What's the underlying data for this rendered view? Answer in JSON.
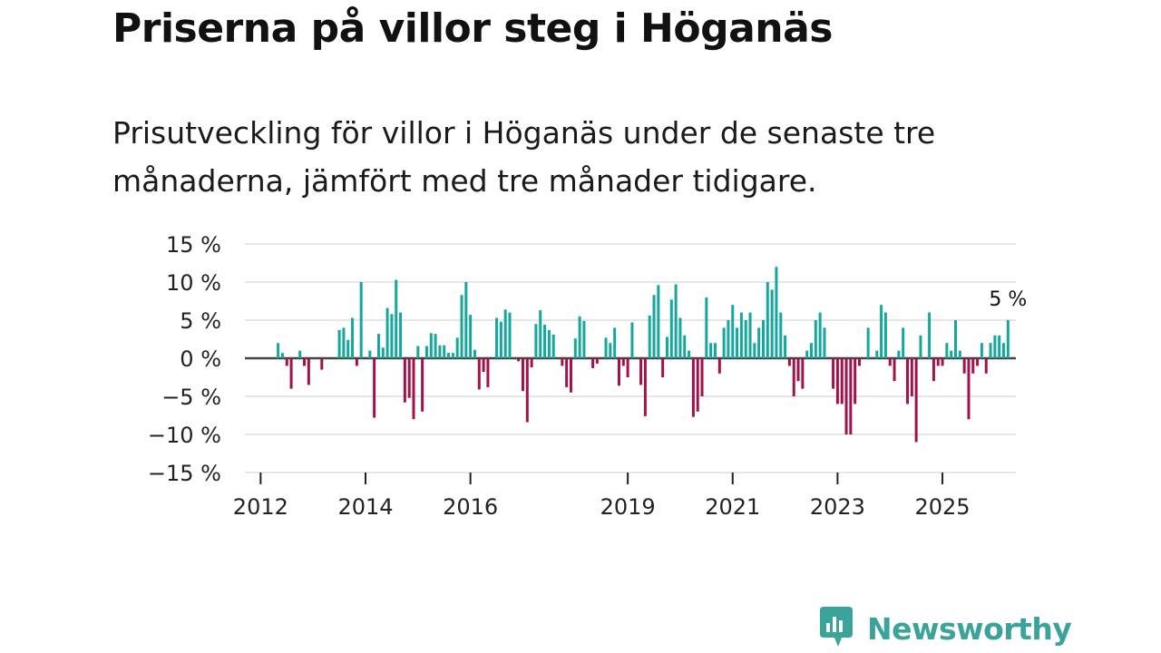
{
  "brand": {
    "name": "Newsworthy",
    "color": "#3aa39a"
  },
  "chart_data": {
    "type": "bar",
    "title": "Priserna på villor steg i Höganäs",
    "subtitle": "Prisutveckling för villor i Höganäs under de senaste tre månaderna, jämfört med tre månader tidigare.",
    "xlabel": "",
    "ylabel": "",
    "unit": "%",
    "ylim": [
      -15,
      15
    ],
    "y_ticks": [
      {
        "value": 15,
        "label": "15 %"
      },
      {
        "value": 10,
        "label": "10 %"
      },
      {
        "value": 5,
        "label": "5 %"
      },
      {
        "value": 0,
        "label": "0 %"
      },
      {
        "value": -5,
        "label": "−5 %"
      },
      {
        "value": -10,
        "label": "−10 %"
      },
      {
        "value": -15,
        "label": "−15 %"
      }
    ],
    "x_ticks": [
      {
        "label": "2012",
        "year": 2012
      },
      {
        "label": "2014",
        "year": 2014
      },
      {
        "label": "2016",
        "year": 2016
      },
      {
        "label": "2019",
        "year": 2019
      },
      {
        "label": "2021",
        "year": 2021
      },
      {
        "label": "2023",
        "year": 2023
      },
      {
        "label": "2025",
        "year": 2025
      }
    ],
    "x_range_years": [
      2011.7,
      2026.4
    ],
    "start": {
      "year": 2012,
      "month": 5
    },
    "positive_color": "#13a89e",
    "negative_color": "#a3114a",
    "last_value_label": "5 %",
    "series": [
      {
        "name": "Prisutveckling",
        "values": [
          2,
          0.7,
          -1,
          -4,
          0,
          1,
          -1,
          -3.5,
          0,
          0,
          -1.5,
          0,
          0,
          0,
          3.7,
          4,
          2.4,
          5.3,
          -1,
          10,
          0,
          1,
          -7.8,
          3.2,
          1.4,
          6.6,
          5.8,
          10.3,
          6,
          -5.8,
          -5.2,
          -8,
          1.6,
          -7,
          1.6,
          3.3,
          3.2,
          1.7,
          1.7,
          0.7,
          0.7,
          2.7,
          8.3,
          10,
          5.7,
          1.1,
          -4.1,
          -1.8,
          -3.8,
          0,
          5.3,
          4.8,
          6.4,
          6,
          0,
          -0.4,
          -4.3,
          -8.4,
          -1.2,
          4.5,
          6.3,
          4.4,
          3.7,
          3.1,
          0,
          -1,
          -3.8,
          -4.5,
          2.6,
          5.5,
          4.9,
          0,
          -1.3,
          -0.7,
          0,
          2.7,
          2,
          4,
          -3.6,
          -1,
          -2.5,
          4.7,
          0,
          -3.5,
          -7.6,
          5.6,
          8.3,
          9.6,
          -2.5,
          2.8,
          7.7,
          9.7,
          5.3,
          3,
          1,
          -7.7,
          -7,
          -5,
          8,
          2,
          2,
          -2,
          4,
          5,
          7,
          4,
          6,
          5,
          6,
          2,
          4,
          5,
          10,
          9,
          12,
          6,
          3,
          -1,
          -5,
          -3,
          -4,
          1,
          2,
          5,
          6,
          4,
          0,
          -4,
          -6,
          -6,
          -10,
          -10,
          -6,
          -1,
          0,
          4,
          0,
          1,
          7,
          6,
          -1,
          -3,
          1,
          4,
          -6,
          -5,
          -11,
          3,
          0,
          6,
          -3,
          -1,
          -1,
          2,
          1,
          5,
          1,
          -2,
          -8,
          -2,
          -1,
          2,
          -2,
          2,
          3,
          3,
          2,
          5
        ]
      }
    ]
  }
}
